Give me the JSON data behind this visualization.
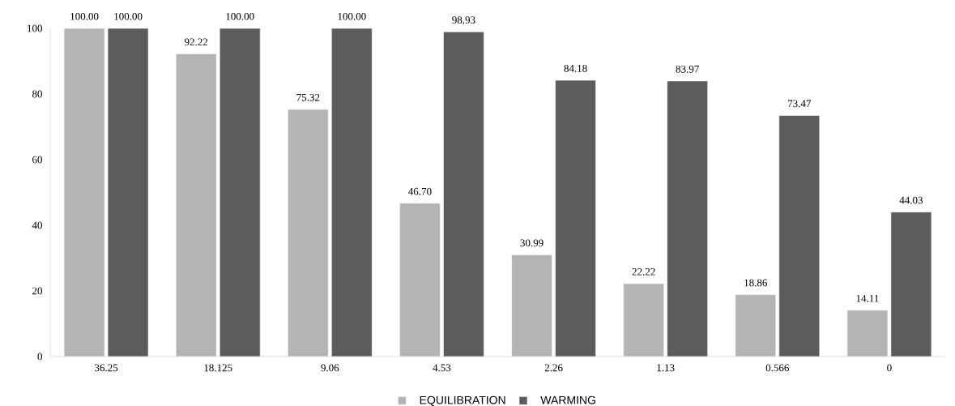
{
  "chart_data": {
    "type": "bar",
    "categories": [
      "36.25",
      "18.125",
      "9.06",
      "4.53",
      "2.26",
      "1.13",
      "0.566",
      "0"
    ],
    "series": [
      {
        "name": "EQUILIBRATION",
        "color": "#b4b4b4",
        "values": [
          100.0,
          92.22,
          75.32,
          46.7,
          30.99,
          22.22,
          18.86,
          14.11
        ],
        "value_labels": [
          "100.00",
          "92.22",
          "75.32",
          "46.70",
          "30.99",
          "22.22",
          "18.86",
          "14.11"
        ]
      },
      {
        "name": "WARMING",
        "color": "#5c5c5c",
        "values": [
          100.0,
          100.0,
          100.0,
          98.93,
          84.18,
          83.97,
          73.47,
          44.03
        ],
        "value_labels": [
          "100.00",
          "100.00",
          "100.00",
          "98.93",
          "84.18",
          "83.97",
          "73.47",
          "44.03"
        ]
      }
    ],
    "ylim": [
      0,
      100
    ],
    "yticks": [
      0,
      20,
      40,
      60,
      80,
      100
    ],
    "legend": "bottom"
  }
}
